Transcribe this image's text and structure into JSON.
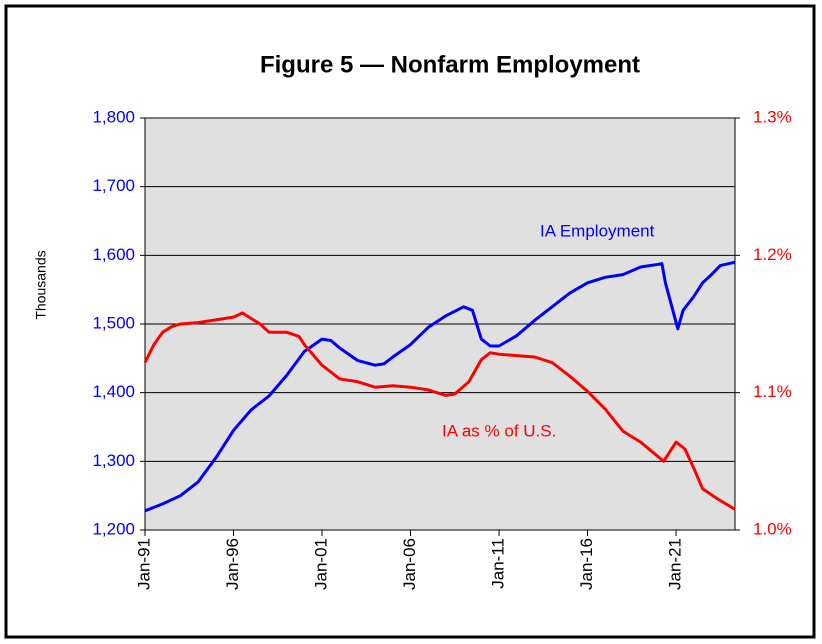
{
  "chart_data": {
    "type": "line",
    "title": "Figure 5 — Nonfarm Employment",
    "ylabel": "Thousands",
    "xlim": [
      1991,
      2024.33
    ],
    "xticks": [
      {
        "value": 1991,
        "label": "Jan-91"
      },
      {
        "value": 1996,
        "label": "Jan-96"
      },
      {
        "value": 2001,
        "label": "Jan-01"
      },
      {
        "value": 2006,
        "label": "Jan-06"
      },
      {
        "value": 2011,
        "label": "Jan-11"
      },
      {
        "value": 2016,
        "label": "Jan-16"
      },
      {
        "value": 2021,
        "label": "Jan-21"
      }
    ],
    "ylim": [
      1200,
      1800
    ],
    "yticks": [
      {
        "value": 1200,
        "label": "1,200"
      },
      {
        "value": 1300,
        "label": "1,300"
      },
      {
        "value": 1400,
        "label": "1,400"
      },
      {
        "value": 1500,
        "label": "1,500"
      },
      {
        "value": 1600,
        "label": "1,600"
      },
      {
        "value": 1700,
        "label": "1,700"
      },
      {
        "value": 1800,
        "label": "1,800"
      }
    ],
    "y2lim": [
      1.0,
      1.3
    ],
    "y2ticks": [
      {
        "value": 1.0,
        "label": "1.0%"
      },
      {
        "value": 1.1,
        "label": "1.1%"
      },
      {
        "value": 1.2,
        "label": "1.2%"
      },
      {
        "value": 1.3,
        "label": "1.3%"
      }
    ],
    "grid": true,
    "series": [
      {
        "name": "IA Employment",
        "color": "#0000ff",
        "x": [
          1991,
          1992,
          1993,
          1994,
          1995,
          1996,
          1997,
          1998,
          1999,
          2000,
          2001,
          2001.5,
          2002,
          2003,
          2004,
          2004.5,
          2005,
          2006,
          2007,
          2008,
          2009,
          2009.5,
          2010,
          2010.5,
          2011,
          2012,
          2013,
          2014,
          2015,
          2016,
          2017,
          2018,
          2019,
          2020,
          2020.2,
          2020.4,
          2021.1,
          2021.4,
          2022,
          2022.5,
          2023,
          2023.5,
          2024.33
        ],
        "values": [
          1228,
          1238,
          1250,
          1270,
          1305,
          1345,
          1375,
          1395,
          1425,
          1460,
          1478,
          1476,
          1465,
          1447,
          1440,
          1442,
          1452,
          1470,
          1495,
          1512,
          1525,
          1520,
          1478,
          1468,
          1468,
          1483,
          1505,
          1525,
          1545,
          1560,
          1568,
          1572,
          1583,
          1587,
          1588,
          1560,
          1493,
          1520,
          1540,
          1560,
          1572,
          1585,
          1590
        ]
      },
      {
        "name": "IA as % of U.S.",
        "color": "#ff0000",
        "axis": "y2",
        "x": [
          1991,
          1991.5,
          1992,
          1992.5,
          1993,
          1994,
          1995,
          1996,
          1996.5,
          1997,
          1997.5,
          1998,
          1999,
          1999.7,
          2000,
          2001,
          2002,
          2003,
          2004,
          2005,
          2006,
          2007,
          2008,
          2008.5,
          2009.3,
          2010,
          2010.5,
          2011,
          2012,
          2013,
          2014,
          2015,
          2016,
          2017,
          2018,
          2019,
          2020.3,
          2021,
          2021.5,
          2022,
          2022.5,
          2023.3,
          2024.33
        ],
        "values": [
          1.122,
          1.135,
          1.144,
          1.148,
          1.15,
          1.151,
          1.153,
          1.155,
          1.158,
          1.154,
          1.15,
          1.144,
          1.144,
          1.141,
          1.135,
          1.12,
          1.11,
          1.108,
          1.104,
          1.105,
          1.104,
          1.102,
          1.098,
          1.099,
          1.108,
          1.124,
          1.129,
          1.128,
          1.127,
          1.126,
          1.122,
          1.112,
          1.101,
          1.088,
          1.072,
          1.064,
          1.05,
          1.064,
          1.059,
          1.045,
          1.03,
          1.023,
          1.015
        ]
      }
    ],
    "annotations": [
      {
        "text": "IA Employment",
        "series": 0
      },
      {
        "text": "IA as % of U.S.",
        "series": 1
      }
    ]
  }
}
